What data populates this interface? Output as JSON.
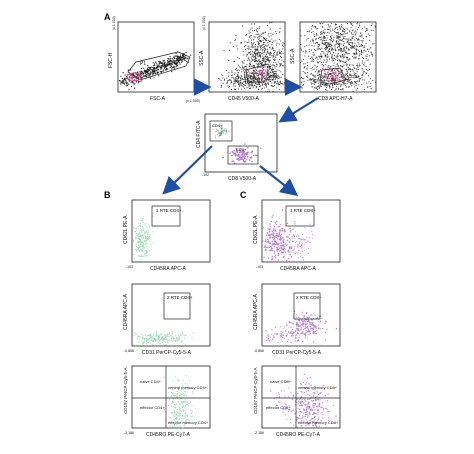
{
  "panel_letters": {
    "a": "A",
    "b": "B",
    "c": "C"
  },
  "colors": {
    "black_dots": "#1a1a1a",
    "cd4_green": "#9fd8b8",
    "cd8_purple": "#b27ad6",
    "gate_magenta": "#e0529a",
    "arrow_blue": "#1f4fa3"
  },
  "chart_data": [
    {
      "id": "fsc-ssc",
      "type": "scatter",
      "xlabel": "FSC-A",
      "ylabel": "FSC-H",
      "xtick_right": "(x 1,000)",
      "ytick_top": "(x 1,000)",
      "gate_label": "P1",
      "gate_label_2": "",
      "density": "black"
    },
    {
      "id": "cd45",
      "type": "scatter",
      "xlabel": "CD45 V500-A",
      "ylabel": "SSC-A",
      "ytick_top": "(x 1,000)",
      "gate_label": "CD45+",
      "density": "black"
    },
    {
      "id": "cd3",
      "type": "scatter",
      "xlabel": "CD3 APC-H7-A",
      "ylabel": "SSC-A",
      "gate_label": "CD3+",
      "density": "black"
    },
    {
      "id": "cd4-cd8",
      "type": "scatter",
      "xlabel": "CD8 V500-A",
      "ylabel": "CD4 FITC-A",
      "gate_label": "CD4+",
      "gate_label_2": "CD8+",
      "xtick_left": "-102",
      "ytick_bottom": "-102"
    },
    {
      "id": "b1",
      "type": "scatter",
      "xlabel": "CD45RA APC-A",
      "ylabel": "CD62L PE-A",
      "gate_label": "1 RTE CD4+",
      "xtick_left": "-103",
      "ytick_bottom": "-103",
      "population": "cd4"
    },
    {
      "id": "b2",
      "type": "scatter",
      "xlabel": "CD31 PerCP-Cy5-5-A",
      "ylabel": "CD45RA APC-A",
      "gate_label": "2 RTE CD4+",
      "xtick_left": "-0,856",
      "ytick_bottom": "-103",
      "population": "cd4"
    },
    {
      "id": "b3",
      "type": "scatter",
      "xlabel": "CD45RO PE-Cy7-A",
      "ylabel": "CD197 PerCP-Cy5-5-A",
      "quadrants": [
        "naive CD4+",
        "central memory CD4+",
        "effector CD4+",
        "effector memory CD4+"
      ],
      "xtick_left": "-2,186",
      "ytick_bottom": "-2,186",
      "population": "cd4"
    },
    {
      "id": "c1",
      "type": "scatter",
      "xlabel": "CD45RA APC-A",
      "ylabel": "CD62L PE-A",
      "gate_label": "1 RTE CD8+",
      "xtick_left": "-103",
      "ytick_bottom": "-103",
      "population": "cd8"
    },
    {
      "id": "c2",
      "type": "scatter",
      "xlabel": "CD31 PerCP-Cy5-5-A",
      "ylabel": "CD45RA APC-A",
      "gate_label": "2 RTE CD8+",
      "xtick_left": "-0,856",
      "ytick_bottom": "-103",
      "population": "cd8"
    },
    {
      "id": "c3",
      "type": "scatter",
      "xlabel": "CD45RO PE-Cy7-A",
      "ylabel": "CD197 PerCP-Cy5-5-A",
      "quadrants": [
        "naive CD8+",
        "central memory CD8+",
        "effector CD8+",
        "effector memory CD8+"
      ],
      "xtick_left": "-2,186",
      "ytick_bottom": "-2,186",
      "population": "cd8"
    }
  ]
}
